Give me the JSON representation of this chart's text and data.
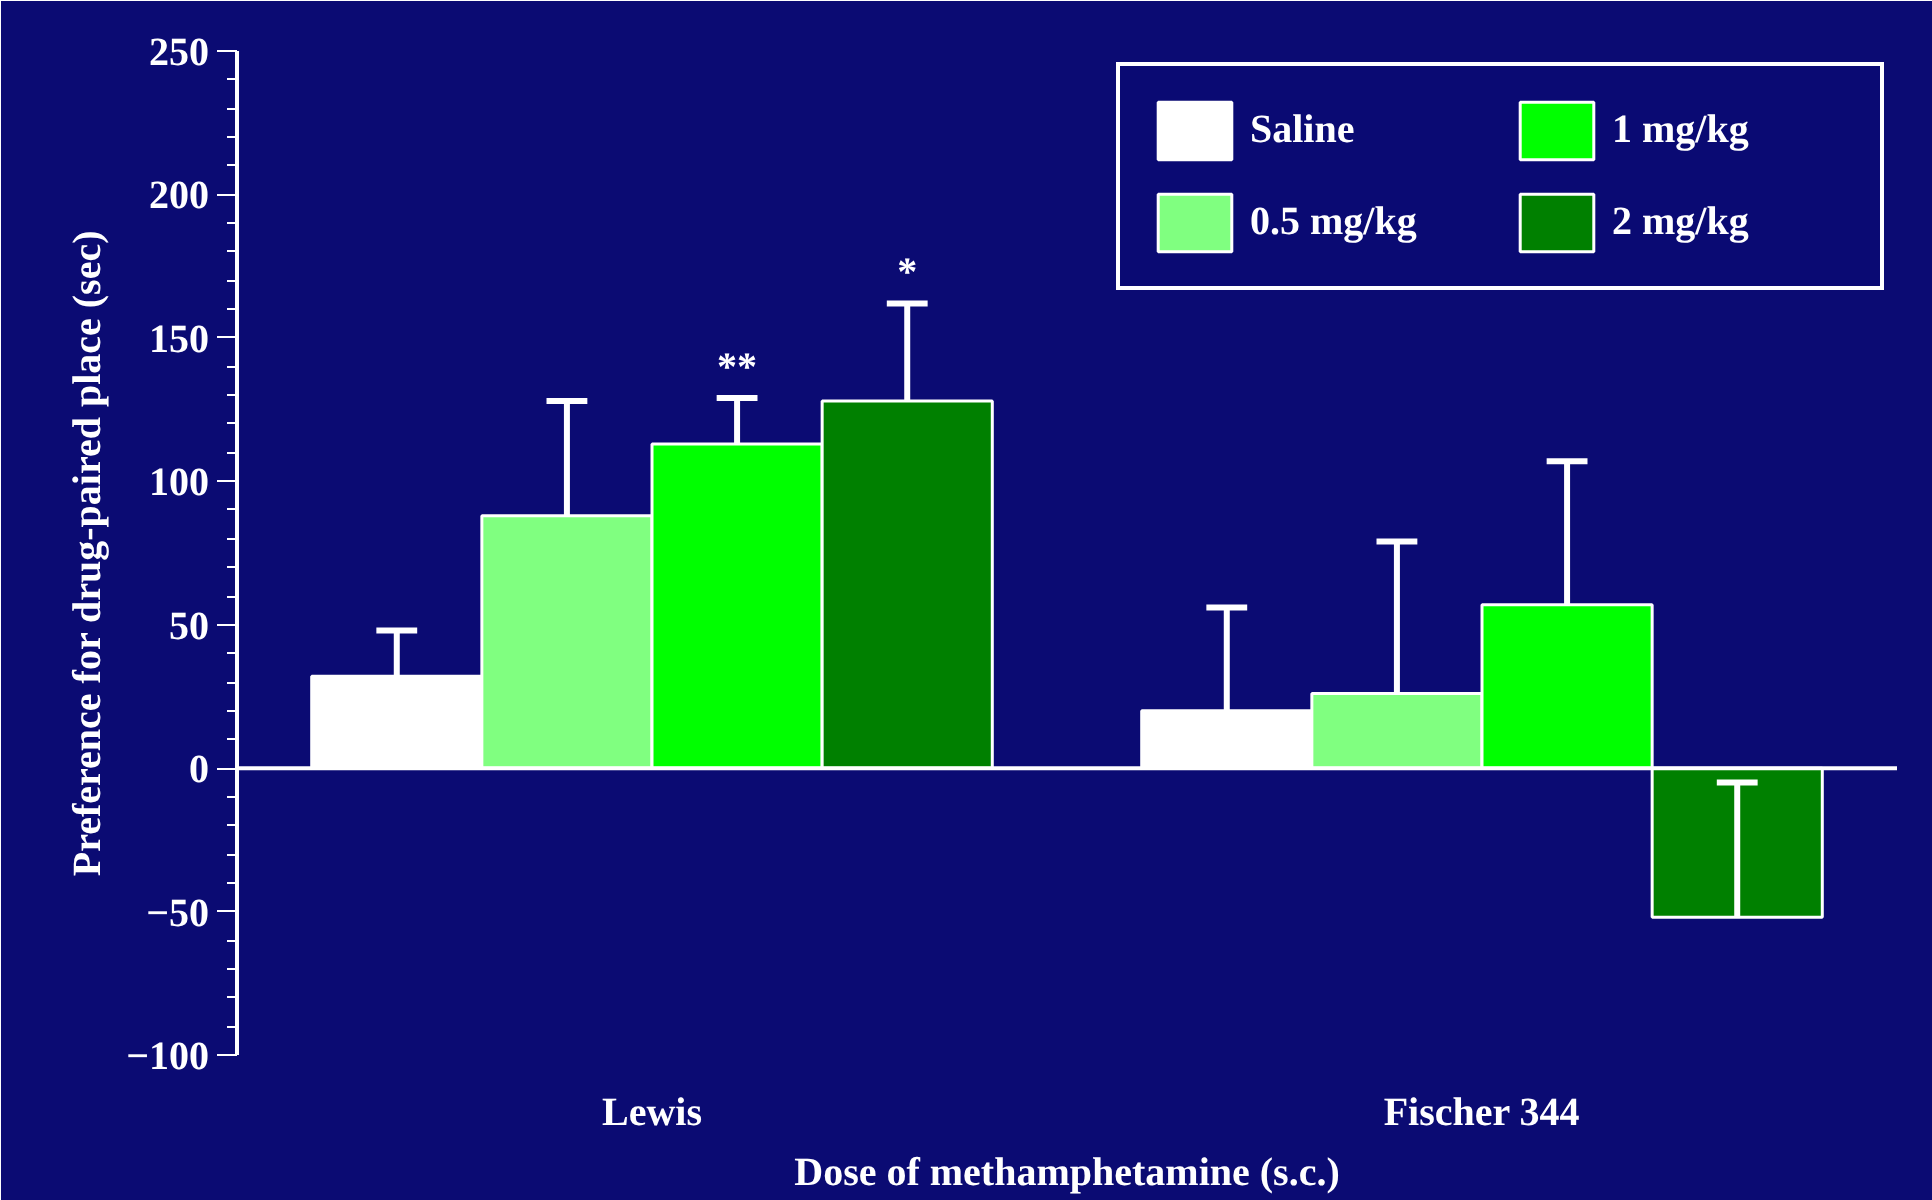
{
  "chart_data": {
    "type": "bar",
    "xlabel": "Dose of methamphetamine (s.c.)",
    "ylabel": "Preference for drug-paired place (sec)",
    "categories": [
      "Lewis",
      "Fischer 344"
    ],
    "series": [
      {
        "name": "Saline",
        "color": "#ffffff",
        "values": [
          32,
          20
        ],
        "errors": [
          [
            32,
            48
          ],
          [
            20,
            56
          ]
        ]
      },
      {
        "name": "0.5 mg/kg",
        "color": "#80ff80",
        "values": [
          88,
          26
        ],
        "errors": [
          [
            88,
            128
          ],
          [
            26,
            79
          ]
        ]
      },
      {
        "name": "1 mg/kg",
        "color": "#00ff00",
        "values": [
          113,
          57
        ],
        "errors": [
          [
            113,
            129
          ],
          [
            57,
            107
          ]
        ],
        "value_labels": [
          "**",
          null
        ]
      },
      {
        "name": "2 mg/kg",
        "color": "#008000",
        "values": [
          128,
          -52
        ],
        "errors": [
          [
            128,
            162
          ],
          [
            -52,
            -5
          ]
        ],
        "value_labels": [
          "*",
          null
        ]
      }
    ],
    "ylim": [
      -100,
      250
    ],
    "yticks": [
      -100,
      -50,
      0,
      50,
      100,
      150,
      200,
      250
    ],
    "ref_lines": [
      {
        "axis": "y",
        "value": 0,
        "color": "#ffffff"
      }
    ],
    "legend": "top right"
  }
}
